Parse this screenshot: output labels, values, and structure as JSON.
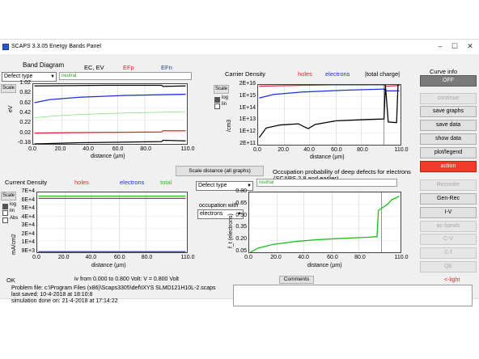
{
  "window": {
    "title": "SCAPS 3.3.05 Energy Bands Panel",
    "minimize_glyph": "–",
    "maximize_glyph": "☐",
    "close_glyph": "✕"
  },
  "band": {
    "title": "Band Diagram",
    "legend_ec_ev": "EC, EV",
    "legend_efp": "EFp",
    "legend_efn": "EFn",
    "defect_select": "Defect type",
    "neutral_field": "neutral",
    "scale_label": "Scale",
    "ylabel": "eV",
    "yticks": [
      "1.02",
      "0.82",
      "0.62",
      "0.42",
      "0.22",
      "0.02",
      "-0.18"
    ],
    "xticks": [
      "0.0",
      "20.0",
      "40.0",
      "60.0",
      "80.0",
      "110.0"
    ],
    "xlabel": "distance (µm)"
  },
  "carrier": {
    "title": "Carrier Density",
    "legend_holes": "holes",
    "legend_electrons": "electrons",
    "legend_total": "|total charge|",
    "scale_label": "Scale",
    "log_label": "log",
    "lin_label": "lin",
    "ylabel": "/cm3",
    "yticks": [
      "2E+16",
      "1E+15",
      "1E+14",
      "1E+13",
      "1E+12",
      "2E+11"
    ],
    "xticks": [
      "0.0",
      "20.0",
      "40.0",
      "60.0",
      "80.0",
      "110.0"
    ],
    "xlabel": "distance (µm)"
  },
  "current": {
    "title": "Current Density",
    "legend_holes": "holes",
    "legend_electrons": "electrons",
    "legend_total": "total",
    "scale_label": "Scale",
    "log_label": "log",
    "lin_label": "lin",
    "abs_label": "Abs",
    "ylabel": "mA/cm2",
    "yticks": [
      "7E+4",
      "6E+4",
      "5E+4",
      "4E+4",
      "3E+4",
      "2E+4",
      "1E+4",
      "9E+3"
    ],
    "xticks": [
      "0.0",
      "20.0",
      "40.0",
      "60.0",
      "80.0",
      "110.0"
    ],
    "xlabel": "distance (µm)"
  },
  "occupation": {
    "scale_distance_button": "Scale distance (all graphs)",
    "title_line1": "Occupation probability of deep defects for electrons",
    "title_line2": "(SCAPS 2.8 and earlier)",
    "defect_select": "Defect type",
    "neutral_field": "neutral",
    "occupation_with": "occupation with",
    "electrons_select": "electrons",
    "ylabel": "f_t (electrons)",
    "yticks": [
      "0.80",
      "0.65",
      "0.50",
      "0.35",
      "0.20",
      "0.05"
    ],
    "xticks": [
      "0.0",
      "20.0",
      "40.0",
      "60.0",
      "80.0",
      "110.0"
    ],
    "xlabel": "distance (µm)"
  },
  "right_panel": {
    "curve_info": "Curve info",
    "off": "OFF",
    "continue": "continue",
    "save_graphs": "save graphs",
    "save_data": "save data",
    "show_data": "show data",
    "plot_legend": "plot/legend",
    "action": "action",
    "recorder": "Recorder",
    "gen_rec": "Gen-Rec",
    "iv": "I-V",
    "ac_bands": "ac-bands",
    "cv": "C-V",
    "cf": "C-f",
    "qe": "QE"
  },
  "bottom": {
    "ok": "OK",
    "iv_status": "iv from 0.000 to 0.800 Volt: V =  0.800 Volt",
    "comments_button": "Comments",
    "light_indicator": "<-light",
    "problem_file": "Problem file: c:\\Program Files (x86)\\Scaps3305\\def\\IXYS SLMD121H10L-2.scaps",
    "last_saved": "last saved: 10-4-2018 at 18:10:8",
    "simulation_done": "simulation done on: 21-4-2018 at 17:14:22"
  },
  "colors": {
    "holes": "#e8202a",
    "electrons": "#1f2fd8",
    "total": "#20c020",
    "charge": "#000000",
    "accent_red": "#f03c2a",
    "dark_button": "#7a7a7a"
  }
}
